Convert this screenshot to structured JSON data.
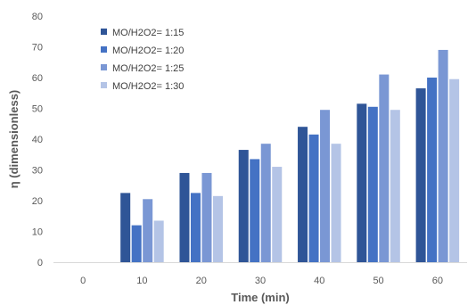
{
  "chart_data": {
    "type": "bar",
    "title": "",
    "xlabel": "Time (min)",
    "ylabel": "η (dimensionless)",
    "ylim": [
      0,
      80
    ],
    "yticks": [
      0,
      10,
      20,
      30,
      40,
      50,
      60,
      70,
      80
    ],
    "grid": false,
    "legend_position": "top-left",
    "categories": [
      "0",
      "10",
      "20",
      "30",
      "40",
      "50",
      "60"
    ],
    "series": [
      {
        "name": "MO/H2O2= 1:15",
        "color": "#2F5597",
        "values": [
          0,
          22.5,
          29,
          36.5,
          44,
          51.5,
          56.5
        ]
      },
      {
        "name": "MO/H2O2= 1:20",
        "color": "#4472C4",
        "values": [
          0,
          12,
          22.5,
          33.5,
          41.5,
          50.5,
          60
        ]
      },
      {
        "name": "MO/H2O2= 1:25",
        "color": "#7A97D4",
        "values": [
          0,
          20.5,
          29,
          38.5,
          49.5,
          61,
          69
        ]
      },
      {
        "name": "MO/H2O2= 1:30",
        "color": "#B4C4E6",
        "values": [
          0,
          13.5,
          21.5,
          31,
          38.5,
          49.5,
          59.5
        ]
      }
    ]
  }
}
